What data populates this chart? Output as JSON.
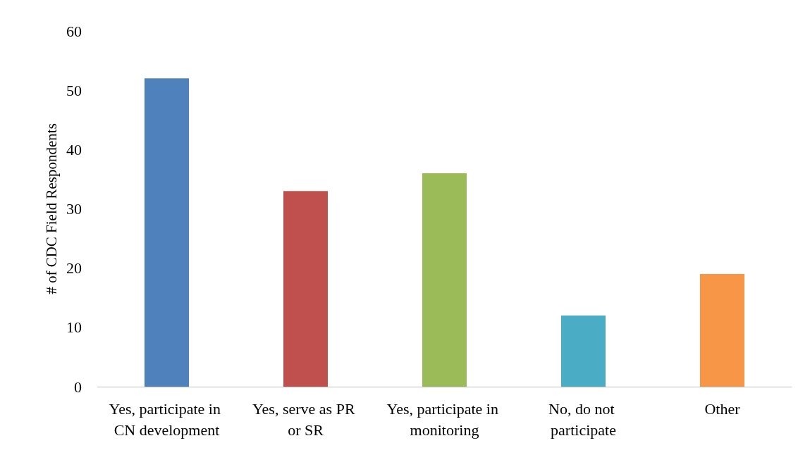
{
  "chart_data": {
    "type": "bar",
    "ylabel": "# of CDC Field Respondents",
    "categories": [
      "Yes, participate in CN development",
      "Yes, serve as PR or SR",
      "Yes, participate in monitoring",
      "No, do not participate",
      "Other"
    ],
    "values": [
      52,
      33,
      36,
      12,
      19
    ],
    "colors": [
      "#4f81bd",
      "#c0504d",
      "#9bbb59",
      "#4bacc6",
      "#f79646"
    ],
    "ylim": [
      0,
      60
    ],
    "yticks": [
      0,
      10,
      20,
      30,
      40,
      50,
      60
    ],
    "grid": false
  }
}
